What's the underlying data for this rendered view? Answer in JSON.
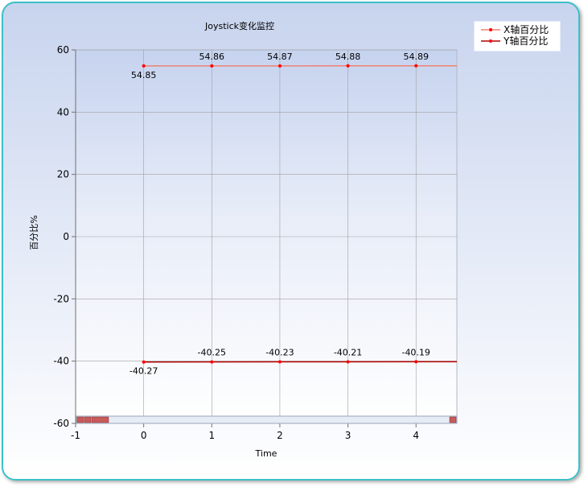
{
  "chart_data": {
    "type": "line",
    "title": "Joystick变化监控",
    "xlabel": "Time",
    "ylabel": "百分比%",
    "xlim": [
      -1,
      4.6
    ],
    "ylim": [
      -60,
      60
    ],
    "xticks": [
      -1,
      0,
      1,
      2,
      3,
      4
    ],
    "yticks": [
      60,
      40,
      20,
      0,
      -20,
      -40,
      -60
    ],
    "x": [
      0,
      1,
      2,
      3,
      4
    ],
    "grid": true,
    "legend_position": "top-right, outside plot area",
    "series": [
      {
        "name": "X轴百分比",
        "values": [
          54.85,
          54.86,
          54.87,
          54.88,
          54.89
        ],
        "labels": [
          "54.85",
          "54.86",
          "54.87",
          "54.88",
          "54.89"
        ],
        "color": "#f08070",
        "marker_color": "#ff0000"
      },
      {
        "name": "Y轴百分比",
        "values": [
          -40.27,
          -40.25,
          -40.23,
          -40.21,
          -40.19
        ],
        "labels": [
          "-40.27",
          "-40.25",
          "-40.23",
          "-40.21",
          "-40.19"
        ],
        "color": "#b00000",
        "marker_color": "#ff0000"
      }
    ],
    "scrollbar": {
      "present": true,
      "color": "#c85a5a"
    },
    "colors": {
      "frame_border": "#3cc0c8",
      "background_top": "#c8d4ee",
      "background_bottom": "#ffffff",
      "grid": "#a0a0a0",
      "axis": "#707070"
    }
  }
}
